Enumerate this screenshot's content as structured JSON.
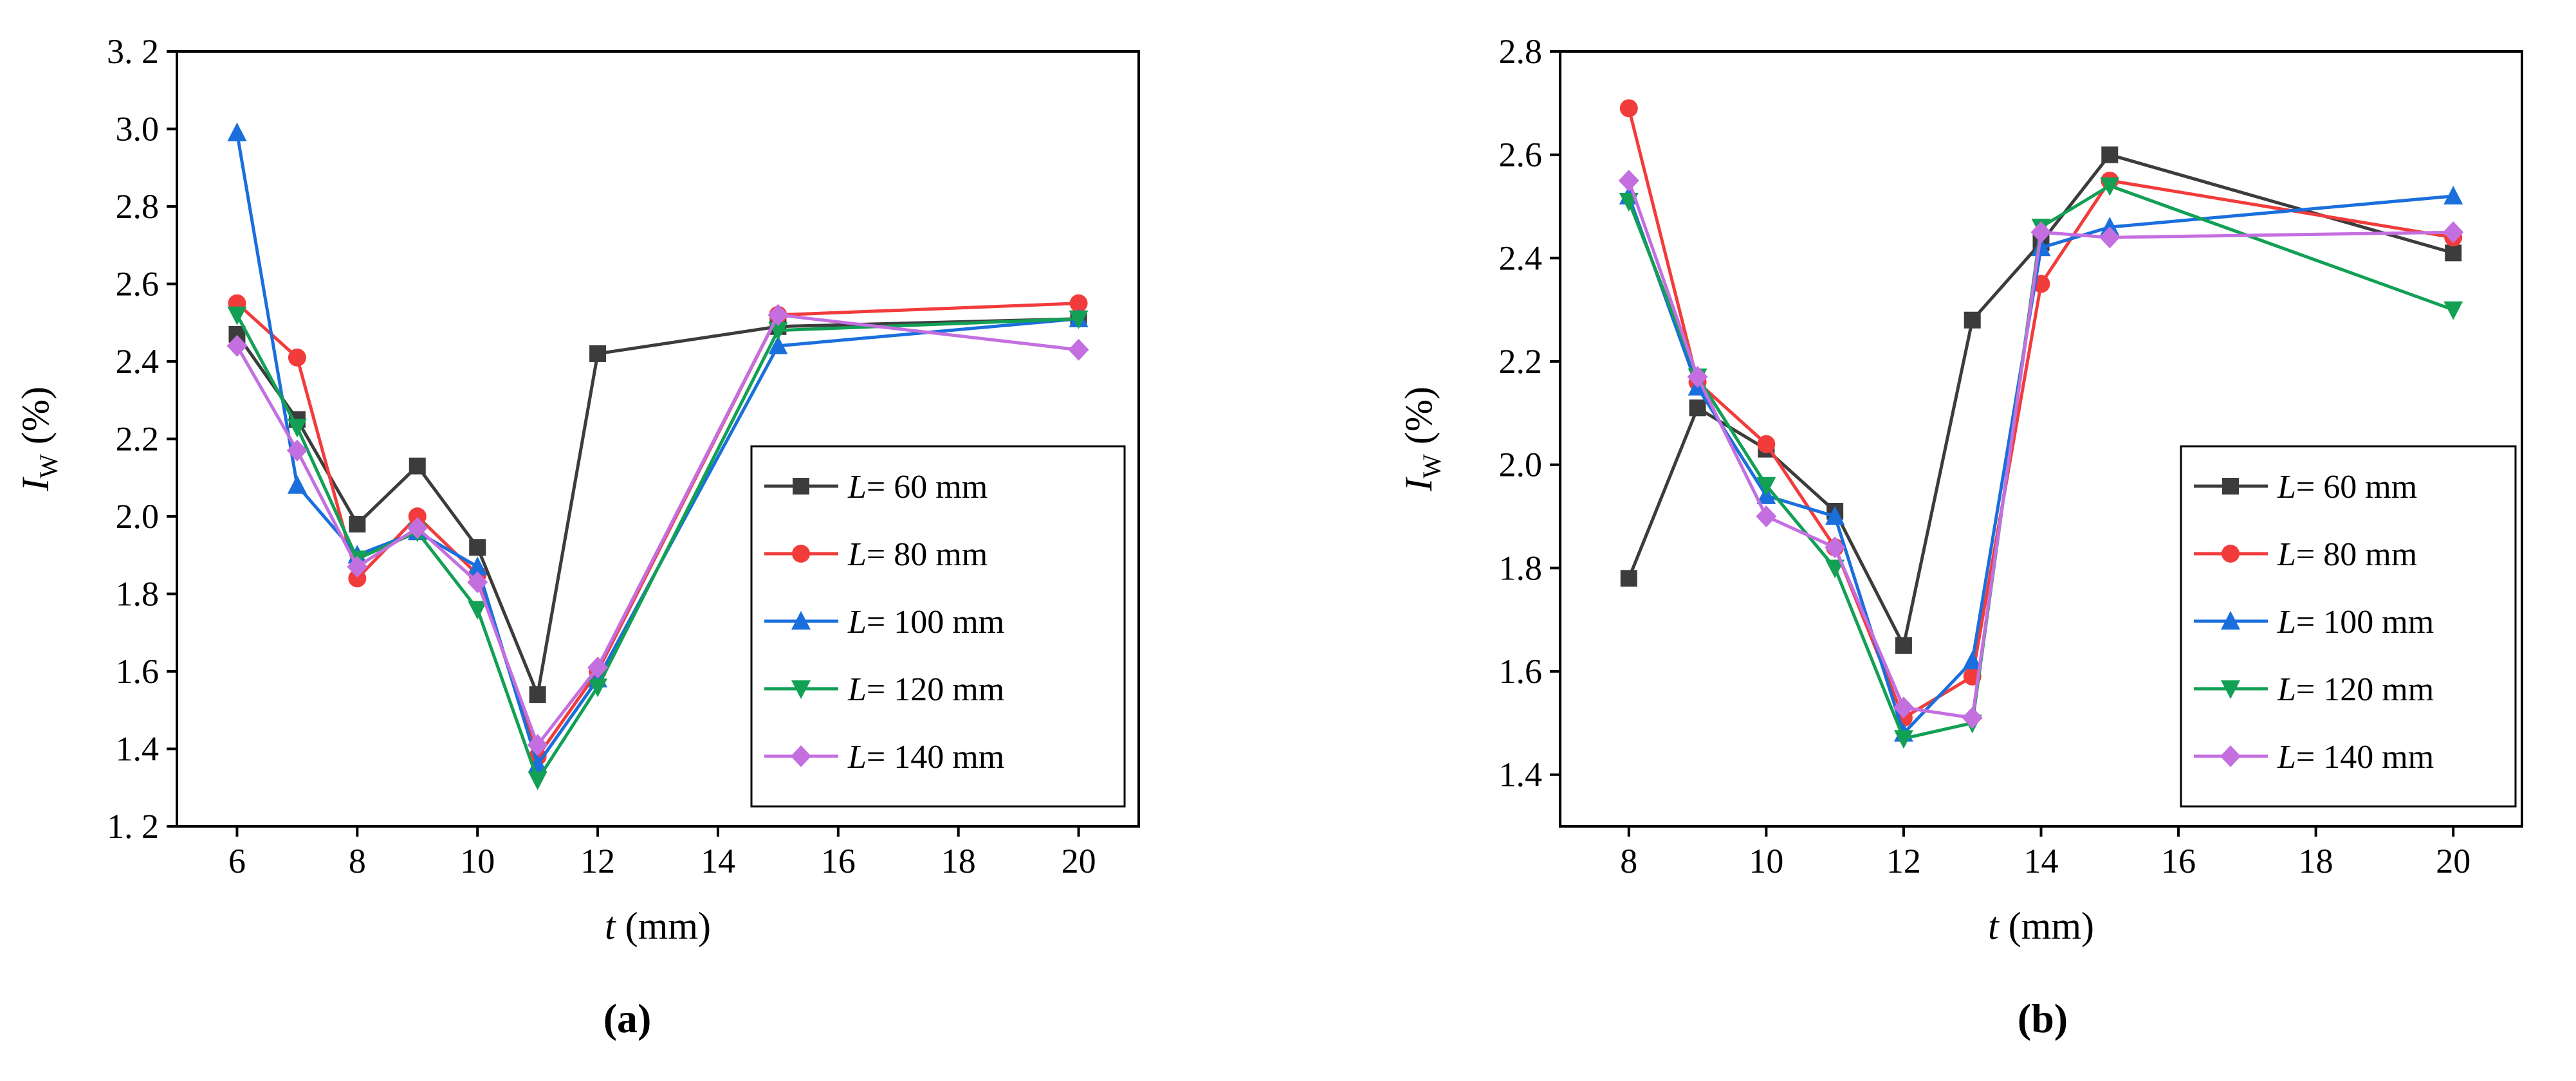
{
  "chart_data": [
    {
      "type": "line",
      "panel_label": "a",
      "caption": "(a)",
      "xlabel_var": "t",
      "xlabel_unit": " (mm)",
      "ylabel_main": "I",
      "ylabel_sub": "W",
      "ylabel_unit": " (%)",
      "xlim": [
        5,
        21
      ],
      "ylim": [
        1.2,
        3.2
      ],
      "xticks": [
        6,
        8,
        10,
        12,
        14,
        16,
        18,
        20
      ],
      "yticks": [
        1.2,
        1.4,
        1.6,
        1.8,
        2.0,
        2.2,
        2.4,
        2.6,
        2.8,
        3.0,
        3.2
      ],
      "ytick_labels": [
        "1. 2",
        "1.4",
        "1.6",
        "1.8",
        "2.0",
        "2.2",
        "2.4",
        "2.6",
        "2.8",
        "3.0",
        "3. 2"
      ],
      "legend_position": "center-right",
      "x": [
        6,
        7,
        8,
        9,
        10,
        11,
        12,
        15,
        20
      ],
      "series": [
        {
          "name": "60 mm",
          "legend_var": "L",
          "legend_value": "= 60 mm",
          "color": "#3c3c3c",
          "marker": "square",
          "values": [
            2.47,
            2.25,
            1.98,
            2.13,
            1.92,
            1.54,
            2.42,
            2.49,
            2.51
          ]
        },
        {
          "name": "80 mm",
          "legend_var": "L",
          "legend_value": "= 80 mm",
          "color": "#f23c3c",
          "marker": "circle",
          "values": [
            2.55,
            2.41,
            1.84,
            2.0,
            1.85,
            1.38,
            1.6,
            2.52,
            2.55
          ]
        },
        {
          "name": "100 mm",
          "legend_var": "L",
          "legend_value": "= 100 mm",
          "color": "#1a6fdc",
          "marker": "triangle-up",
          "values": [
            2.99,
            2.08,
            1.9,
            1.96,
            1.87,
            1.36,
            1.58,
            2.44,
            2.51
          ]
        },
        {
          "name": "120 mm",
          "legend_var": "L",
          "legend_value": "= 120 mm",
          "color": "#12a054",
          "marker": "triangle-down",
          "values": [
            2.52,
            2.23,
            1.89,
            1.96,
            1.76,
            1.32,
            1.56,
            2.48,
            2.51
          ]
        },
        {
          "name": "140 mm",
          "legend_var": "L",
          "legend_value": "= 140 mm",
          "color": "#c46fe0",
          "marker": "diamond",
          "values": [
            2.44,
            2.17,
            1.87,
            1.97,
            1.83,
            1.41,
            1.61,
            2.52,
            2.43
          ]
        }
      ]
    },
    {
      "type": "line",
      "panel_label": "b",
      "caption": "(b)",
      "xlabel_var": "t",
      "xlabel_unit": " (mm)",
      "ylabel_main": "I",
      "ylabel_sub": "W",
      "ylabel_unit": " (%)",
      "xlim": [
        7,
        21
      ],
      "ylim": [
        1.3,
        2.8
      ],
      "xticks": [
        8,
        10,
        12,
        14,
        16,
        18,
        20
      ],
      "yticks": [
        1.4,
        1.6,
        1.8,
        2.0,
        2.2,
        2.4,
        2.6,
        2.8
      ],
      "ytick_labels": [
        "1.4",
        "1.6",
        "1.8",
        "2.0",
        "2.2",
        "2.4",
        "2.6",
        "2.8"
      ],
      "legend_position": "center-right",
      "x": [
        8,
        9,
        10,
        11,
        12,
        13,
        14,
        15,
        20
      ],
      "series": [
        {
          "name": "60 mm",
          "legend_var": "L",
          "legend_value": "= 60 mm",
          "color": "#3c3c3c",
          "marker": "square",
          "values": [
            1.78,
            2.11,
            2.03,
            1.91,
            1.65,
            2.28,
            2.43,
            2.6,
            2.41
          ]
        },
        {
          "name": "80 mm",
          "legend_var": "L",
          "legend_value": "= 80 mm",
          "color": "#f23c3c",
          "marker": "circle",
          "values": [
            2.69,
            2.16,
            2.04,
            1.84,
            1.51,
            1.59,
            2.35,
            2.55,
            2.44
          ]
        },
        {
          "name": "100 mm",
          "legend_var": "L",
          "legend_value": "= 100 mm",
          "color": "#1a6fdc",
          "marker": "triangle-up",
          "values": [
            2.52,
            2.15,
            1.94,
            1.9,
            1.48,
            1.62,
            2.42,
            2.46,
            2.52
          ]
        },
        {
          "name": "120 mm",
          "legend_var": "L",
          "legend_value": "= 120 mm",
          "color": "#12a054",
          "marker": "triangle-down",
          "values": [
            2.51,
            2.17,
            1.96,
            1.8,
            1.47,
            1.5,
            2.46,
            2.54,
            2.3
          ]
        },
        {
          "name": "140 mm",
          "legend_var": "L",
          "legend_value": "= 140 mm",
          "color": "#c46fe0",
          "marker": "diamond",
          "values": [
            2.55,
            2.17,
            1.9,
            1.84,
            1.53,
            1.51,
            2.45,
            2.44,
            2.45
          ]
        }
      ]
    }
  ]
}
